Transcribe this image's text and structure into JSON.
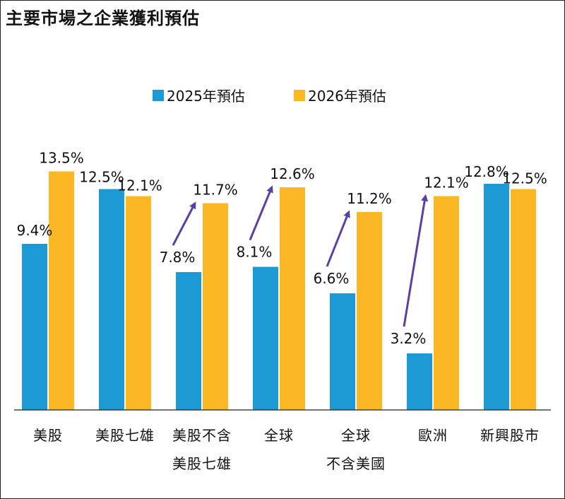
{
  "title": "主要市場之企業獲利預估",
  "chart_data": {
    "type": "bar",
    "categories": [
      [
        "美股"
      ],
      [
        "美股七雄"
      ],
      [
        "美股不含",
        "美股七雄"
      ],
      [
        "全球"
      ],
      [
        "全球",
        "不含美國"
      ],
      [
        "歐洲"
      ],
      [
        "新興股市"
      ]
    ],
    "series": [
      {
        "name": "2025年預估",
        "color": "#1d9ad6",
        "values": [
          9.4,
          12.5,
          7.8,
          8.1,
          6.6,
          3.2,
          12.8
        ]
      },
      {
        "name": "2026年預估",
        "color": "#fbb824",
        "values": [
          13.5,
          12.1,
          11.7,
          12.6,
          11.2,
          12.1,
          12.5
        ]
      }
    ],
    "value_suffix": "%",
    "ylim": [
      0,
      14
    ],
    "legend_position": "top-center",
    "grid": false,
    "annotations": {
      "arrow_color": "#5b3fa8",
      "arrows_on_categories": [
        2,
        3,
        4,
        5
      ]
    }
  }
}
